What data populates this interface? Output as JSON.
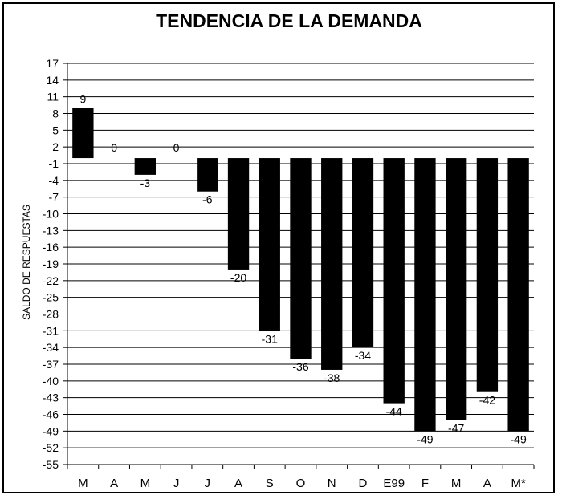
{
  "chart_data": {
    "type": "bar",
    "title": "TENDENCIA DE LA DEMANDA",
    "xlabel": "",
    "ylabel": "SALDO DE RESPUESTAS",
    "categories": [
      "M",
      "A",
      "M",
      "J",
      "J",
      "A",
      "S",
      "O",
      "N",
      "D",
      "E99",
      "F",
      "M",
      "A",
      "M*"
    ],
    "values": [
      9,
      0,
      -3,
      0,
      -6,
      -20,
      -31,
      -36,
      -38,
      -34,
      -44,
      -49,
      -47,
      -42,
      -49
    ],
    "value_labels": [
      "9",
      "0",
      "-3",
      "0",
      "-6",
      "-20",
      "-31",
      "-36",
      "-38",
      "-34",
      "-44",
      "-49",
      "-47",
      "-42",
      "-49"
    ],
    "yticks": [
      17,
      14,
      11,
      8,
      5,
      2,
      -1,
      -4,
      -7,
      -10,
      -13,
      -16,
      -19,
      -22,
      -25,
      -28,
      -31,
      -34,
      -37,
      -40,
      -43,
      -46,
      -49,
      -52,
      -55
    ],
    "ylim": [
      -55,
      17
    ],
    "grid": "horizontal",
    "bar_color": "#000000",
    "legend": "none"
  }
}
